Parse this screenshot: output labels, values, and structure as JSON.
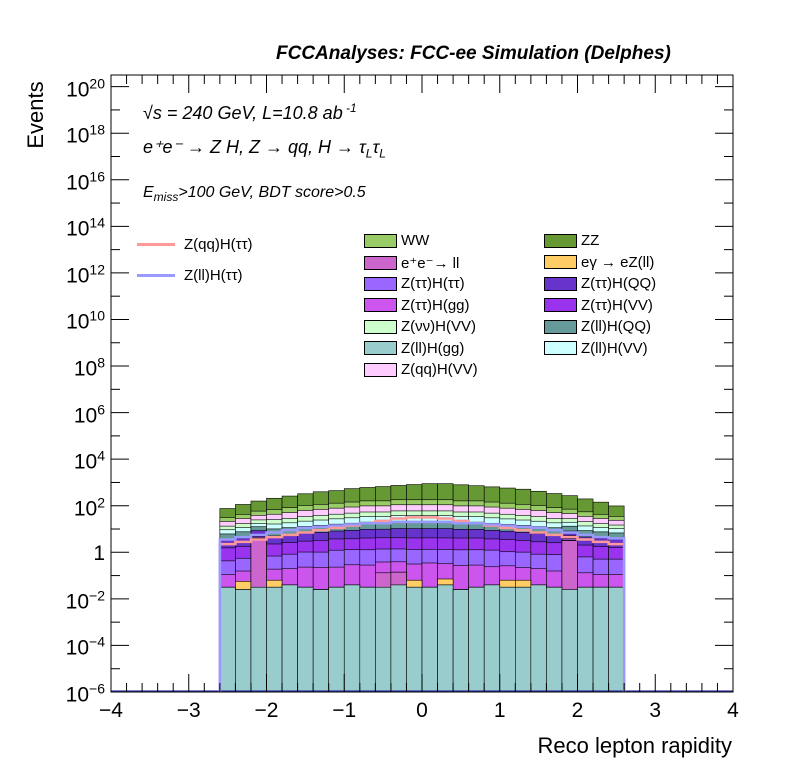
{
  "chart_data": {
    "type": "bar",
    "title": "FCCAnalyses: FCC-ee Simulation (Delphes)",
    "xlabel": "Reco lepton rapidity",
    "ylabel": "Events",
    "xlim": [
      -4,
      4
    ],
    "ylim_log10": [
      -6,
      20.5
    ],
    "log_y": true,
    "grid": false,
    "x_ticks": [
      "−4",
      "−3",
      "−2",
      "−1",
      "0",
      "1",
      "2",
      "3",
      "4"
    ],
    "y_ticks": [
      {
        "exp": -6,
        "label": "10",
        "sup": "−6"
      },
      {
        "exp": -4,
        "label": "10",
        "sup": "−4"
      },
      {
        "exp": -2,
        "label": "10",
        "sup": "−2"
      },
      {
        "exp": 0,
        "label": "1",
        "sup": ""
      },
      {
        "exp": 2,
        "label": "10",
        "sup": "2"
      },
      {
        "exp": 4,
        "label": "10",
        "sup": "4"
      },
      {
        "exp": 6,
        "label": "10",
        "sup": "6"
      },
      {
        "exp": 8,
        "label": "10",
        "sup": "8"
      },
      {
        "exp": 10,
        "label": "10",
        "sup": "10"
      },
      {
        "exp": 12,
        "label": "10",
        "sup": "12"
      },
      {
        "exp": 14,
        "label": "10",
        "sup": "14"
      },
      {
        "exp": 16,
        "label": "10",
        "sup": "16"
      },
      {
        "exp": 18,
        "label": "10",
        "sup": "18"
      },
      {
        "exp": 20,
        "label": "10",
        "sup": "20"
      }
    ],
    "annotations": {
      "energy_sqrt": "√s",
      "energy_text": " = 240 GeV, L=10.8 ab",
      "energy_sup": " -1",
      "process": "e⁺e⁻ → Z H, Z → qq, H → τ",
      "process_sub1": "L",
      "process_tau2": "τ",
      "process_sub2": "L",
      "cut_E": "E",
      "cut_sub": "miss",
      "cut_text": ">100 GeV, BDT score>0.5"
    },
    "bin_edges_start": -2.6,
    "bin_width": 0.2,
    "n_bins": 26,
    "stack_order": [
      "Z(ll)H(gg)",
      "e⁺e⁻→ ll",
      "eγ → eZ(ll)",
      "Z(ττ)H(gg)",
      "Z(ττ)H(ττ)",
      "Z(ττ)H(VV)",
      "Z(ττ)H(QQ)",
      "Z(ll)H(QQ)",
      "Z(ll)H(VV)",
      "Z(νν)H(VV)",
      "Z(qq)H(VV)",
      "WW",
      "ZZ"
    ],
    "stacked_series": [
      {
        "name": "Z(ll)H(gg)",
        "color": "#99cccc",
        "log_values": [
          -1.5,
          -1.6,
          -1.5,
          -1.5,
          -1.4,
          -1.5,
          -1.6,
          -1.5,
          -1.4,
          -1.5,
          -1.5,
          -1.4,
          -1.5,
          -1.5,
          -1.4,
          -1.6,
          -1.5,
          -1.4,
          -1.5,
          -1.5,
          -1.4,
          -1.5,
          -1.6,
          -1.5,
          -1.5,
          -1.5
        ]
      },
      {
        "name": "e⁺e⁻→ ll",
        "color": "#cc66cc",
        "log_values": [
          null,
          null,
          0.6,
          null,
          null,
          null,
          null,
          null,
          null,
          null,
          -1.0,
          -1.0,
          null,
          null,
          null,
          null,
          null,
          null,
          null,
          null,
          null,
          null,
          0.5,
          null,
          null,
          null
        ]
      },
      {
        "name": "eγ → eZ(ll)",
        "color": "#ffcc66",
        "log_values": [
          null,
          -1.5,
          null,
          -1.5,
          null,
          null,
          null,
          null,
          null,
          null,
          null,
          null,
          -1.5,
          null,
          -1.5,
          null,
          null,
          null,
          -1.5,
          -1.5,
          null,
          null,
          null,
          null,
          null,
          null
        ]
      },
      {
        "name": "Z(ττ)H(gg)",
        "color": "#cc55ee",
        "log_values": [
          -1.1,
          -1.0,
          -0.9,
          -0.9,
          -0.8,
          -0.7,
          -0.7,
          -0.7,
          -0.6,
          -0.6,
          -0.6,
          -0.6,
          -0.6,
          -0.5,
          -0.6,
          -0.6,
          -0.6,
          -0.7,
          -0.7,
          -0.8,
          -0.8,
          -0.9,
          -1.0,
          -1.0,
          -1.1,
          -1.1
        ]
      },
      {
        "name": "Z(ττ)H(ττ)",
        "color": "#9966ff",
        "log_values": [
          -0.5,
          -0.4,
          -0.3,
          -0.3,
          -0.2,
          -0.1,
          -0.1,
          0.0,
          0.0,
          0.0,
          0.0,
          0.0,
          0.0,
          0.0,
          0.0,
          0.0,
          0.0,
          0.0,
          -0.1,
          -0.1,
          -0.2,
          -0.2,
          -0.3,
          -0.3,
          -0.4,
          -0.4
        ]
      },
      {
        "name": "Z(ττ)H(VV)",
        "color": "#9933ee",
        "log_values": [
          0.05,
          0.1,
          0.15,
          0.2,
          0.25,
          0.3,
          0.35,
          0.4,
          0.4,
          0.45,
          0.45,
          0.45,
          0.45,
          0.45,
          0.45,
          0.45,
          0.45,
          0.4,
          0.4,
          0.35,
          0.3,
          0.25,
          0.2,
          0.15,
          0.1,
          0.05
        ]
      },
      {
        "name": "Z(ττ)H(QQ)",
        "color": "#6633cc",
        "log_values": [
          0.25,
          0.35,
          0.4,
          0.45,
          0.5,
          0.55,
          0.6,
          0.65,
          0.7,
          0.75,
          0.75,
          0.8,
          0.8,
          0.8,
          0.8,
          0.75,
          0.75,
          0.7,
          0.65,
          0.6,
          0.55,
          0.5,
          0.45,
          0.4,
          0.35,
          0.3
        ]
      },
      {
        "name": "Z(ll)H(QQ)",
        "color": "#669999",
        "log_values": [
          0.45,
          0.55,
          0.6,
          0.7,
          0.75,
          0.8,
          0.85,
          0.9,
          0.95,
          1.0,
          1.0,
          1.05,
          1.05,
          1.05,
          1.05,
          1.0,
          1.0,
          0.95,
          0.9,
          0.85,
          0.8,
          0.75,
          0.7,
          0.6,
          0.55,
          0.5
        ]
      },
      {
        "name": "Z(ll)H(VV)",
        "color": "#ccffff",
        "log_values": [
          0.5,
          0.6,
          0.7,
          0.8,
          0.85,
          0.95,
          1.0,
          1.05,
          1.1,
          1.15,
          1.15,
          1.2,
          1.2,
          1.2,
          1.2,
          1.15,
          1.15,
          1.1,
          1.05,
          1.0,
          0.95,
          0.85,
          0.8,
          0.7,
          0.6,
          0.55
        ]
      },
      {
        "name": "Z(νν)H(VV)",
        "color": "#ccffcc",
        "log_values": [
          0.6,
          0.75,
          0.85,
          0.95,
          1.0,
          1.1,
          1.15,
          1.2,
          1.25,
          1.3,
          1.3,
          1.35,
          1.35,
          1.35,
          1.35,
          1.3,
          1.3,
          1.25,
          1.2,
          1.15,
          1.1,
          1.0,
          0.95,
          0.85,
          0.75,
          0.65
        ]
      },
      {
        "name": "Z(qq)H(VV)",
        "color": "#ffccff",
        "log_values": [
          0.9,
          1.05,
          1.15,
          1.25,
          1.35,
          1.45,
          1.5,
          1.55,
          1.6,
          1.65,
          1.65,
          1.7,
          1.7,
          1.7,
          1.7,
          1.65,
          1.65,
          1.6,
          1.55,
          1.5,
          1.45,
          1.35,
          1.25,
          1.15,
          1.05,
          0.95
        ]
      },
      {
        "name": "WW",
        "color": "#99cc66",
        "log_values": [
          1.0,
          1.15,
          1.3,
          1.4,
          1.5,
          1.6,
          1.65,
          1.7,
          1.75,
          1.8,
          1.8,
          1.85,
          1.85,
          1.85,
          1.85,
          1.8,
          1.8,
          1.75,
          1.7,
          1.65,
          1.6,
          1.5,
          1.4,
          1.3,
          1.15,
          1.05
        ]
      },
      {
        "name": "ZZ",
        "color": "#669933",
        "log_values": [
          1.65,
          1.85,
          2.0,
          2.15,
          2.25,
          2.35,
          2.45,
          2.5,
          2.6,
          2.65,
          2.7,
          2.75,
          2.8,
          2.85,
          2.85,
          2.8,
          2.75,
          2.7,
          2.65,
          2.6,
          2.5,
          2.4,
          2.3,
          2.15,
          2.0,
          1.8
        ]
      }
    ],
    "line_series": [
      {
        "name": "Z(qq)H(ττ)",
        "color": "#ff9999",
        "log_values": [
          0.35,
          0.45,
          0.55,
          0.65,
          0.75,
          0.85,
          0.95,
          1.05,
          1.15,
          1.25,
          1.35,
          1.45,
          1.5,
          1.5,
          1.45,
          1.35,
          1.25,
          1.15,
          1.05,
          0.95,
          0.85,
          0.75,
          0.65,
          0.55,
          0.45,
          0.35
        ]
      },
      {
        "name": "Z(ll)H(ττ)",
        "color": "#9999ff",
        "log_values": [
          0.55,
          0.65,
          0.75,
          0.85,
          0.95,
          1.05,
          1.1,
          1.15,
          1.2,
          1.25,
          1.25,
          1.3,
          1.3,
          1.3,
          1.3,
          1.25,
          1.25,
          1.2,
          1.15,
          1.1,
          1.05,
          0.95,
          0.85,
          0.75,
          0.65,
          0.6
        ]
      }
    ],
    "legend_lines": [
      {
        "name": "Z(qq)H(ττ)",
        "color": "#ff9999"
      },
      {
        "name": "Z(ll)H(ττ)",
        "color": "#9999ff"
      }
    ],
    "legend_col1": [
      {
        "name": "WW",
        "color": "#99cc66"
      },
      {
        "name": "e⁺e⁻→ ll",
        "color": "#cc66cc"
      },
      {
        "name": "Z(ττ)H(ττ)",
        "color": "#9966ff"
      },
      {
        "name": "Z(ττ)H(gg)",
        "color": "#cc55ee"
      },
      {
        "name": "Z(νν)H(VV)",
        "color": "#ccffcc"
      },
      {
        "name": "Z(ll)H(gg)",
        "color": "#99cccc"
      },
      {
        "name": "Z(qq)H(VV)",
        "color": "#ffccff"
      }
    ],
    "legend_col2": [
      {
        "name": "ZZ",
        "color": "#669933"
      },
      {
        "name": "eγ → eZ(ll)",
        "color": "#ffcc66"
      },
      {
        "name": "Z(ττ)H(QQ)",
        "color": "#6633cc"
      },
      {
        "name": "Z(ττ)H(VV)",
        "color": "#9933ee"
      },
      {
        "name": "Z(ll)H(QQ)",
        "color": "#669999"
      },
      {
        "name": "Z(ll)H(VV)",
        "color": "#ccffff"
      }
    ]
  }
}
